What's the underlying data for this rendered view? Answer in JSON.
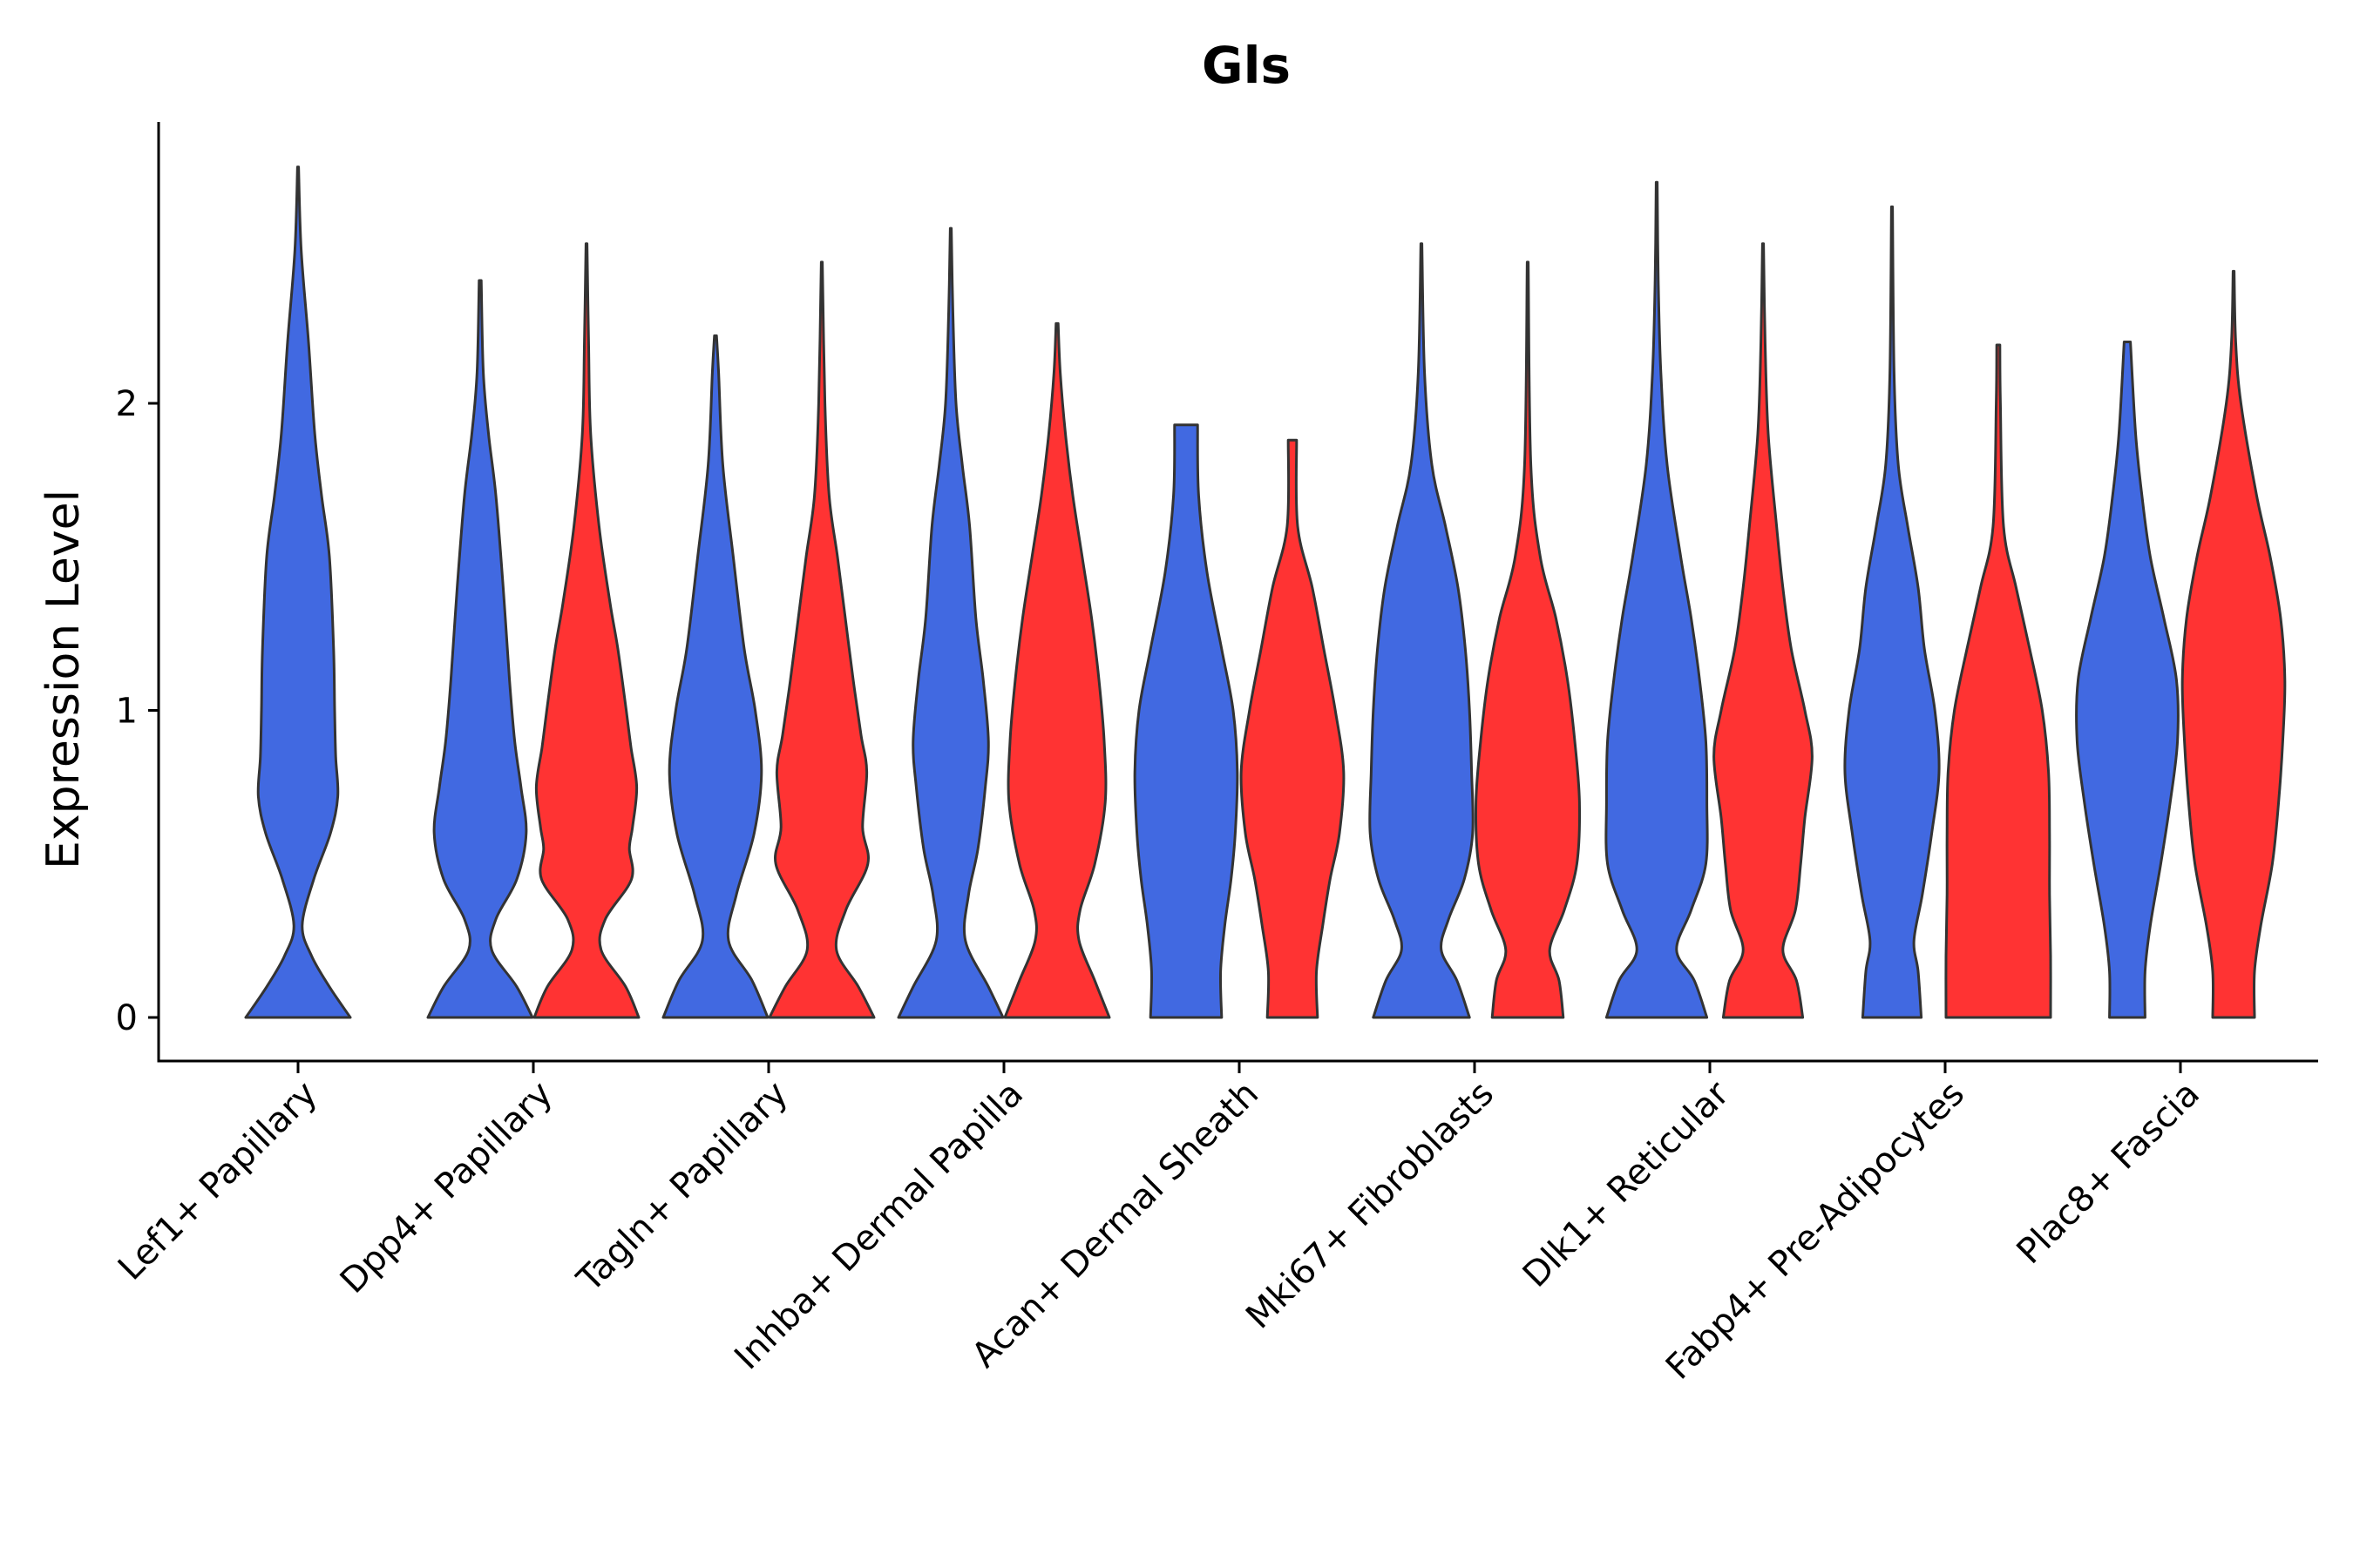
{
  "chart_data": {
    "type": "violin",
    "title": "Gls",
    "xlabel": "",
    "ylabel": "Expression Level",
    "ylim": [
      -0.14,
      2.9
    ],
    "yticks": [
      0,
      1,
      2
    ],
    "categories": [
      "Lef1+ Papillary",
      "Dpp4+ Papillary",
      "Tagln+ Papillary",
      "Inhba+ Dermal Papilla",
      "Acan+ Dermal Sheath",
      "Mki67+ Fibroblasts",
      "Dlk1+ Reticular",
      "Fabp4+ Pre-Adipocytes",
      "Plac8+ Fascia"
    ],
    "colors": {
      "blue": "#4169E1",
      "red": "#FF3333",
      "outline": "#333333"
    },
    "series": [
      {
        "name": "blue",
        "color": "#4169E1"
      },
      {
        "name": "red",
        "color": "#FF3333"
      }
    ],
    "violins": [
      {
        "category": "Lef1+ Papillary",
        "group": "blue",
        "max": 2.77,
        "profile": [
          [
            0,
            1.0
          ],
          [
            0.1,
            0.6
          ],
          [
            0.2,
            0.26
          ],
          [
            0.3,
            0.08
          ],
          [
            0.45,
            0.3
          ],
          [
            0.6,
            0.62
          ],
          [
            0.72,
            0.76
          ],
          [
            0.85,
            0.72
          ],
          [
            1.0,
            0.7
          ],
          [
            1.2,
            0.68
          ],
          [
            1.5,
            0.6
          ],
          [
            1.7,
            0.45
          ],
          [
            1.9,
            0.32
          ],
          [
            2.2,
            0.2
          ],
          [
            2.5,
            0.06
          ],
          [
            2.77,
            0.01
          ]
        ]
      },
      {
        "category": "Dpp4+ Papillary",
        "group": "blue",
        "max": 2.4,
        "profile": [
          [
            0,
            1.0
          ],
          [
            0.1,
            0.7
          ],
          [
            0.22,
            0.22
          ],
          [
            0.32,
            0.3
          ],
          [
            0.45,
            0.7
          ],
          [
            0.6,
            0.88
          ],
          [
            0.75,
            0.78
          ],
          [
            0.9,
            0.66
          ],
          [
            1.1,
            0.56
          ],
          [
            1.4,
            0.44
          ],
          [
            1.7,
            0.3
          ],
          [
            1.9,
            0.16
          ],
          [
            2.1,
            0.06
          ],
          [
            2.4,
            0.02
          ]
        ]
      },
      {
        "category": "Dpp4+ Papillary",
        "group": "red",
        "max": 2.52,
        "profile": [
          [
            0,
            1.0
          ],
          [
            0.1,
            0.75
          ],
          [
            0.22,
            0.28
          ],
          [
            0.32,
            0.36
          ],
          [
            0.45,
            0.86
          ],
          [
            0.55,
            0.82
          ],
          [
            0.62,
            0.88
          ],
          [
            0.75,
            0.96
          ],
          [
            0.88,
            0.85
          ],
          [
            1.0,
            0.76
          ],
          [
            1.2,
            0.6
          ],
          [
            1.35,
            0.45
          ],
          [
            1.6,
            0.24
          ],
          [
            1.9,
            0.08
          ],
          [
            2.2,
            0.04
          ],
          [
            2.52,
            0.01
          ]
        ]
      },
      {
        "category": "Tagln+ Papillary",
        "group": "blue",
        "max": 2.22,
        "profile": [
          [
            0,
            1.0
          ],
          [
            0.12,
            0.7
          ],
          [
            0.25,
            0.25
          ],
          [
            0.4,
            0.4
          ],
          [
            0.6,
            0.74
          ],
          [
            0.8,
            0.88
          ],
          [
            1.0,
            0.76
          ],
          [
            1.2,
            0.55
          ],
          [
            1.5,
            0.34
          ],
          [
            1.8,
            0.14
          ],
          [
            2.1,
            0.06
          ],
          [
            2.22,
            0.02
          ]
        ]
      },
      {
        "category": "Tagln+ Papillary",
        "group": "red",
        "max": 2.46,
        "profile": [
          [
            0,
            1.0
          ],
          [
            0.1,
            0.7
          ],
          [
            0.22,
            0.28
          ],
          [
            0.35,
            0.46
          ],
          [
            0.5,
            0.88
          ],
          [
            0.62,
            0.78
          ],
          [
            0.8,
            0.86
          ],
          [
            0.92,
            0.75
          ],
          [
            1.1,
            0.6
          ],
          [
            1.3,
            0.45
          ],
          [
            1.5,
            0.3
          ],
          [
            1.7,
            0.14
          ],
          [
            2.0,
            0.06
          ],
          [
            2.46,
            0.01
          ]
        ]
      },
      {
        "category": "Inhba+ Dermal Papilla",
        "group": "blue",
        "max": 2.57,
        "profile": [
          [
            0,
            1.0
          ],
          [
            0.1,
            0.72
          ],
          [
            0.25,
            0.28
          ],
          [
            0.4,
            0.34
          ],
          [
            0.55,
            0.52
          ],
          [
            0.75,
            0.66
          ],
          [
            0.9,
            0.72
          ],
          [
            1.1,
            0.62
          ],
          [
            1.3,
            0.48
          ],
          [
            1.6,
            0.36
          ],
          [
            1.8,
            0.22
          ],
          [
            2.0,
            0.1
          ],
          [
            2.3,
            0.04
          ],
          [
            2.57,
            0.01
          ]
        ]
      },
      {
        "category": "Inhba+ Dermal Papilla",
        "group": "red",
        "max": 2.26,
        "profile": [
          [
            0,
            1.0
          ],
          [
            0.12,
            0.72
          ],
          [
            0.25,
            0.42
          ],
          [
            0.35,
            0.44
          ],
          [
            0.5,
            0.72
          ],
          [
            0.7,
            0.92
          ],
          [
            0.9,
            0.9
          ],
          [
            1.1,
            0.8
          ],
          [
            1.3,
            0.66
          ],
          [
            1.5,
            0.48
          ],
          [
            1.7,
            0.3
          ],
          [
            1.9,
            0.16
          ],
          [
            2.1,
            0.06
          ],
          [
            2.26,
            0.02
          ]
        ]
      },
      {
        "category": "Acan+ Dermal Sheath",
        "group": "blue",
        "max": 1.93,
        "profile": [
          [
            0,
            0.68
          ],
          [
            0.15,
            0.66
          ],
          [
            0.3,
            0.74
          ],
          [
            0.45,
            0.86
          ],
          [
            0.6,
            0.94
          ],
          [
            0.8,
            0.98
          ],
          [
            1.0,
            0.9
          ],
          [
            1.2,
            0.68
          ],
          [
            1.45,
            0.4
          ],
          [
            1.7,
            0.24
          ],
          [
            1.93,
            0.22
          ]
        ]
      },
      {
        "category": "Acan+ Dermal Sheath",
        "group": "red",
        "max": 1.88,
        "profile": [
          [
            0,
            0.48
          ],
          [
            0.15,
            0.46
          ],
          [
            0.3,
            0.58
          ],
          [
            0.45,
            0.72
          ],
          [
            0.6,
            0.9
          ],
          [
            0.8,
            0.98
          ],
          [
            1.0,
            0.82
          ],
          [
            1.2,
            0.6
          ],
          [
            1.4,
            0.38
          ],
          [
            1.6,
            0.1
          ],
          [
            1.88,
            0.08
          ]
        ]
      },
      {
        "category": "Mki67+ Fibroblasts",
        "group": "blue",
        "max": 2.52,
        "profile": [
          [
            0,
            0.92
          ],
          [
            0.12,
            0.68
          ],
          [
            0.22,
            0.38
          ],
          [
            0.32,
            0.52
          ],
          [
            0.45,
            0.82
          ],
          [
            0.6,
            0.98
          ],
          [
            0.8,
            0.96
          ],
          [
            1.0,
            0.92
          ],
          [
            1.2,
            0.84
          ],
          [
            1.4,
            0.7
          ],
          [
            1.6,
            0.46
          ],
          [
            1.8,
            0.2
          ],
          [
            2.1,
            0.06
          ],
          [
            2.52,
            0.01
          ]
        ]
      },
      {
        "category": "Mki67+ Fibroblasts",
        "group": "red",
        "max": 2.46,
        "profile": [
          [
            0,
            0.68
          ],
          [
            0.12,
            0.6
          ],
          [
            0.22,
            0.42
          ],
          [
            0.35,
            0.7
          ],
          [
            0.5,
            0.94
          ],
          [
            0.7,
            0.99
          ],
          [
            0.9,
            0.9
          ],
          [
            1.1,
            0.76
          ],
          [
            1.3,
            0.54
          ],
          [
            1.5,
            0.24
          ],
          [
            1.8,
            0.06
          ],
          [
            2.46,
            0.01
          ]
        ]
      },
      {
        "category": "Dlk1+ Reticular",
        "group": "blue",
        "max": 2.72,
        "profile": [
          [
            0,
            0.96
          ],
          [
            0.12,
            0.72
          ],
          [
            0.22,
            0.38
          ],
          [
            0.35,
            0.66
          ],
          [
            0.5,
            0.94
          ],
          [
            0.7,
            0.96
          ],
          [
            0.9,
            0.94
          ],
          [
            1.1,
            0.82
          ],
          [
            1.3,
            0.66
          ],
          [
            1.5,
            0.46
          ],
          [
            1.8,
            0.2
          ],
          [
            2.1,
            0.08
          ],
          [
            2.4,
            0.03
          ],
          [
            2.72,
            0.01
          ]
        ]
      },
      {
        "category": "Dlk1+ Reticular",
        "group": "red",
        "max": 2.52,
        "profile": [
          [
            0,
            0.76
          ],
          [
            0.12,
            0.64
          ],
          [
            0.22,
            0.38
          ],
          [
            0.35,
            0.62
          ],
          [
            0.5,
            0.72
          ],
          [
            0.65,
            0.8
          ],
          [
            0.85,
            0.94
          ],
          [
            1.0,
            0.8
          ],
          [
            1.2,
            0.54
          ],
          [
            1.4,
            0.38
          ],
          [
            1.6,
            0.26
          ],
          [
            1.9,
            0.1
          ],
          [
            2.2,
            0.04
          ],
          [
            2.52,
            0.01
          ]
        ]
      },
      {
        "category": "Fabp4+ Pre-Adipocytes",
        "group": "blue",
        "max": 2.64,
        "profile": [
          [
            0,
            0.56
          ],
          [
            0.15,
            0.5
          ],
          [
            0.25,
            0.42
          ],
          [
            0.4,
            0.58
          ],
          [
            0.6,
            0.76
          ],
          [
            0.8,
            0.9
          ],
          [
            1.0,
            0.82
          ],
          [
            1.2,
            0.62
          ],
          [
            1.4,
            0.5
          ],
          [
            1.6,
            0.3
          ],
          [
            1.8,
            0.12
          ],
          [
            2.1,
            0.04
          ],
          [
            2.64,
            0.01
          ]
        ]
      },
      {
        "category": "Fabp4+ Pre-Adipocytes",
        "group": "red",
        "max": 2.19,
        "profile": [
          [
            0,
            1.0
          ],
          [
            0.2,
            1.0
          ],
          [
            0.4,
            0.98
          ],
          [
            0.6,
            0.98
          ],
          [
            0.8,
            0.96
          ],
          [
            1.0,
            0.84
          ],
          [
            1.2,
            0.6
          ],
          [
            1.4,
            0.34
          ],
          [
            1.6,
            0.1
          ],
          [
            2.0,
            0.04
          ],
          [
            2.19,
            0.03
          ]
        ]
      },
      {
        "category": "Plac8+ Fascia",
        "group": "blue",
        "max": 2.2,
        "profile": [
          [
            0,
            0.34
          ],
          [
            0.15,
            0.34
          ],
          [
            0.3,
            0.44
          ],
          [
            0.5,
            0.64
          ],
          [
            0.7,
            0.82
          ],
          [
            0.9,
            0.96
          ],
          [
            1.1,
            0.94
          ],
          [
            1.3,
            0.7
          ],
          [
            1.5,
            0.44
          ],
          [
            1.7,
            0.28
          ],
          [
            1.9,
            0.16
          ],
          [
            2.2,
            0.06
          ]
        ]
      },
      {
        "category": "Plac8+ Fascia",
        "group": "red",
        "max": 2.43,
        "profile": [
          [
            0,
            0.4
          ],
          [
            0.15,
            0.4
          ],
          [
            0.3,
            0.52
          ],
          [
            0.5,
            0.74
          ],
          [
            0.7,
            0.86
          ],
          [
            0.9,
            0.94
          ],
          [
            1.1,
            0.98
          ],
          [
            1.3,
            0.9
          ],
          [
            1.5,
            0.7
          ],
          [
            1.7,
            0.44
          ],
          [
            2.0,
            0.14
          ],
          [
            2.2,
            0.04
          ],
          [
            2.43,
            0.01
          ]
        ]
      }
    ]
  }
}
